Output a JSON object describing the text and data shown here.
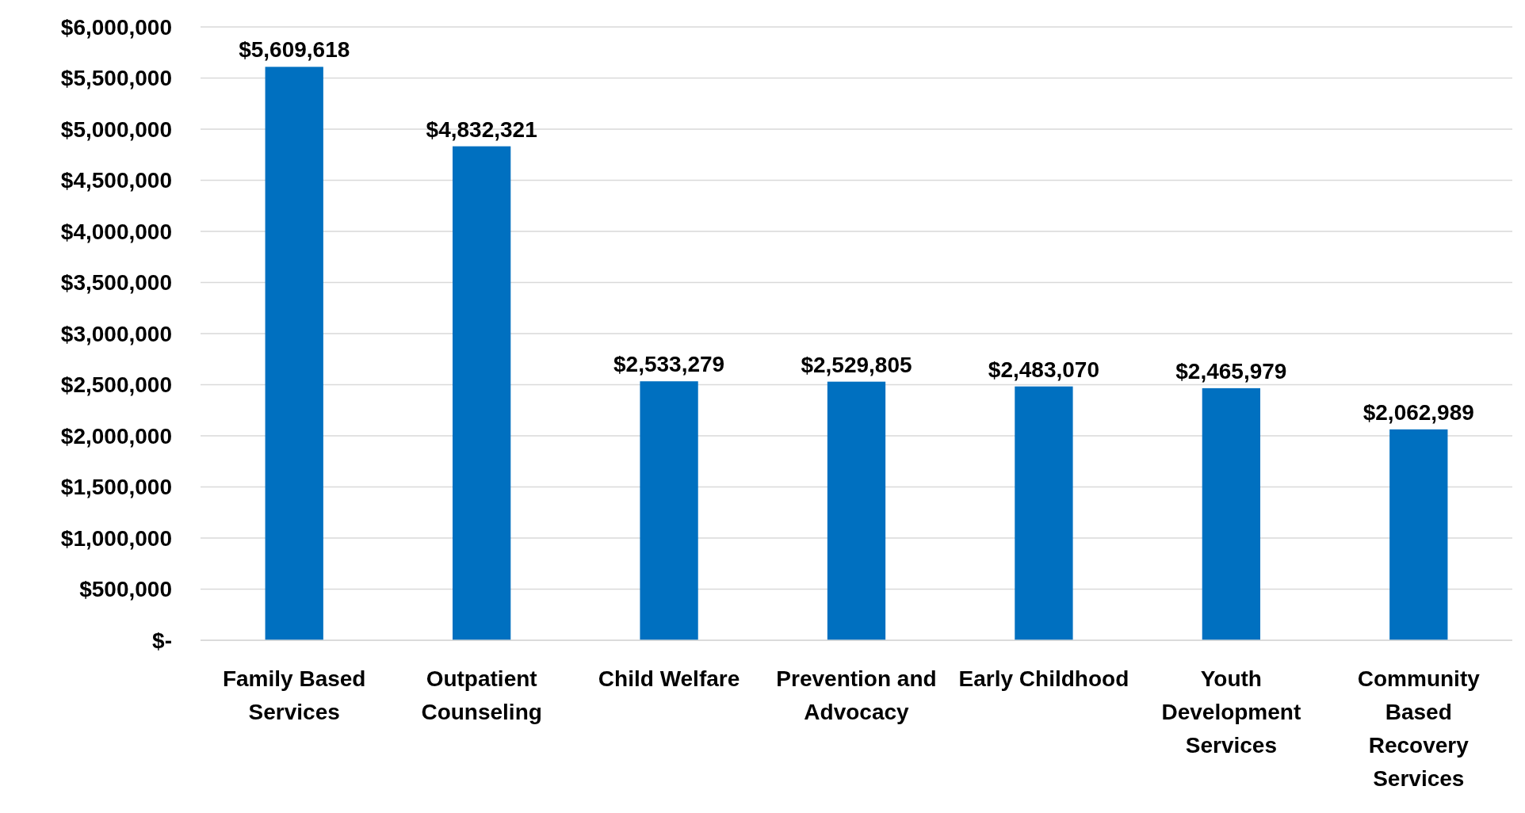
{
  "chart_data": {
    "type": "bar",
    "categories": [
      "Family Based Services",
      "Outpatient Counseling",
      "Child Welfare",
      "Prevention and Advocacy",
      "Early Childhood",
      "Youth Development Services",
      "Community Based Recovery Services"
    ],
    "values": [
      5609618,
      4832321,
      2533279,
      2529805,
      2483070,
      2465979,
      2062989
    ],
    "value_labels": [
      "$5,609,618",
      "$4,832,321",
      "$2,533,279",
      "$2,529,805",
      "$2,483,070",
      "$2,465,979",
      "$2,062,989"
    ],
    "color": "#0070c0",
    "ylim": [
      0,
      6000000
    ],
    "yticks": [
      {
        "value": 0,
        "label": "$-"
      },
      {
        "value": 500000,
        "label": "$500,000"
      },
      {
        "value": 1000000,
        "label": "$1,000,000"
      },
      {
        "value": 1500000,
        "label": "$1,500,000"
      },
      {
        "value": 2000000,
        "label": "$2,000,000"
      },
      {
        "value": 2500000,
        "label": "$2,500,000"
      },
      {
        "value": 3000000,
        "label": "$3,000,000"
      },
      {
        "value": 3500000,
        "label": "$3,500,000"
      },
      {
        "value": 4000000,
        "label": "$4,000,000"
      },
      {
        "value": 4500000,
        "label": "$4,500,000"
      },
      {
        "value": 5000000,
        "label": "$5,000,000"
      },
      {
        "value": 5500000,
        "label": "$5,500,000"
      },
      {
        "value": 6000000,
        "label": "$6,000,000"
      }
    ],
    "grid": true
  }
}
